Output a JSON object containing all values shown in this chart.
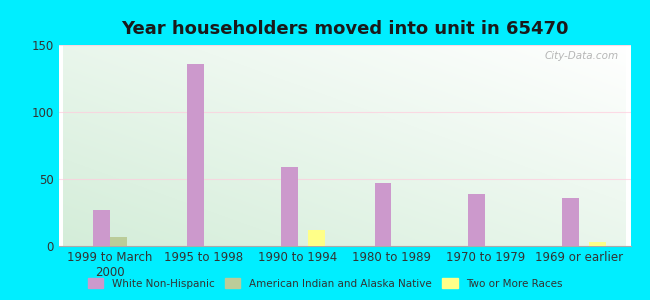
{
  "title": "Year householders moved into unit in 65470",
  "categories": [
    "1999 to March\n2000",
    "1995 to 1998",
    "1990 to 1994",
    "1980 to 1989",
    "1970 to 1979",
    "1969 or earlier"
  ],
  "white_non_hispanic": [
    27,
    136,
    59,
    47,
    39,
    36
  ],
  "american_indian": [
    7,
    0,
    0,
    0,
    0,
    0
  ],
  "two_or_more": [
    0,
    0,
    12,
    0,
    0,
    3
  ],
  "bar_width": 0.18,
  "ylim": [
    0,
    150
  ],
  "yticks": [
    0,
    50,
    100,
    150
  ],
  "color_white": "#cc99cc",
  "color_indian": "#bbcc99",
  "color_two": "#ffff88",
  "bg_outer": "#00eeff",
  "legend_labels": [
    "White Non-Hispanic",
    "American Indian and Alaska Native",
    "Two or More Races"
  ],
  "title_fontsize": 13,
  "tick_label_fontsize": 8.5,
  "watermark": "City-Data.com"
}
